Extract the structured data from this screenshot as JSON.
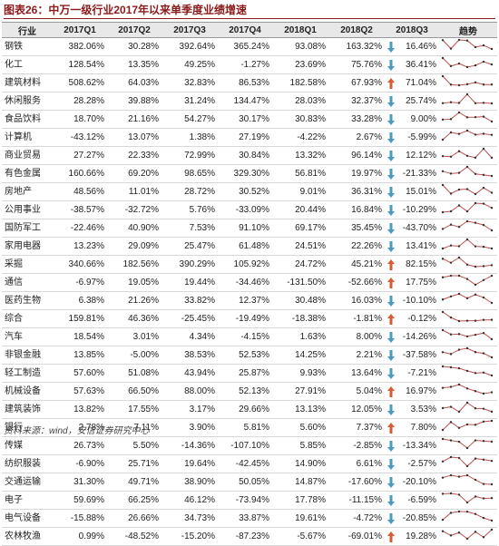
{
  "title": "图表26：中万一级行业2017年以来单季度业绩增速",
  "source": "资料来源：wind，安信证券研究中心",
  "arrow_colors": {
    "up": "#e0582f",
    "down": "#4a9bc2"
  },
  "sparkline_color": "#c0504d",
  "table": {
    "header": [
      "行业",
      "2017Q1",
      "2017Q2",
      "2017Q3",
      "2017Q4",
      "2018Q1",
      "2018Q2",
      "2018Q3",
      "趋势"
    ],
    "rows": [
      {
        "cells": [
          "钢铁",
          "382.06%",
          "30.28%",
          "392.64%",
          "365.24%",
          "93.08%",
          "163.32%",
          "16.46%"
        ],
        "arrow": "down"
      },
      {
        "cells": [
          "化工",
          "128.54%",
          "13.35%",
          "49.25%",
          "-1.27%",
          "23.69%",
          "75.76%",
          "36.41%"
        ],
        "arrow": "down"
      },
      {
        "cells": [
          "建筑材料",
          "508.62%",
          "64.03%",
          "32.83%",
          "86.53%",
          "182.58%",
          "67.93%",
          "71.04%"
        ],
        "arrow": "up"
      },
      {
        "cells": [
          "休闲服务",
          "28.28%",
          "39.88%",
          "31.24%",
          "134.47%",
          "28.03%",
          "32.37%",
          "25.74%"
        ],
        "arrow": "down"
      },
      {
        "cells": [
          "食品饮料",
          "18.70%",
          "21.16%",
          "54.27%",
          "30.17%",
          "30.83%",
          "33.28%",
          "9.00%"
        ],
        "arrow": "down"
      },
      {
        "cells": [
          "计算机",
          "-43.12%",
          "13.07%",
          "1.38%",
          "27.19%",
          "-4.22%",
          "2.67%",
          "-5.99%"
        ],
        "arrow": "down"
      },
      {
        "cells": [
          "商业贸易",
          "27.27%",
          "22.33%",
          "72.99%",
          "30.84%",
          "13.32%",
          "96.14%",
          "12.12%"
        ],
        "arrow": "down"
      },
      {
        "cells": [
          "有色金属",
          "160.66%",
          "69.20%",
          "98.65%",
          "329.30%",
          "56.81%",
          "19.97%",
          "-21.33%"
        ],
        "arrow": "down"
      },
      {
        "cells": [
          "房地产",
          "48.56%",
          "11.01%",
          "28.72%",
          "30.52%",
          "9.01%",
          "36.31%",
          "15.01%"
        ],
        "arrow": "down"
      },
      {
        "cells": [
          "公用事业",
          "-38.57%",
          "-32.72%",
          "5.76%",
          "-33.09%",
          "20.44%",
          "16.84%",
          "-10.29%"
        ],
        "arrow": "down"
      },
      {
        "cells": [
          "国防军工",
          "-22.46%",
          "40.90%",
          "7.53%",
          "91.10%",
          "69.17%",
          "35.45%",
          "-43.70%"
        ],
        "arrow": "down"
      },
      {
        "cells": [
          "家用电器",
          "13.23%",
          "29.09%",
          "25.47%",
          "61.48%",
          "24.51%",
          "22.26%",
          "13.41%"
        ],
        "arrow": "down"
      },
      {
        "cells": [
          "采掘",
          "340.66%",
          "182.56%",
          "390.29%",
          "105.92%",
          "24.72%",
          "45.21%",
          "82.15%"
        ],
        "arrow": "up"
      },
      {
        "cells": [
          "通信",
          "-6.97%",
          "19.05%",
          "19.44%",
          "-34.46%",
          "-131.50%",
          "-52.66%",
          "17.75%"
        ],
        "arrow": "up"
      },
      {
        "cells": [
          "医药生物",
          "6.38%",
          "21.26%",
          "33.82%",
          "12.37%",
          "30.48%",
          "16.03%",
          "-10.10%"
        ],
        "arrow": "down"
      },
      {
        "cells": [
          "综合",
          "159.81%",
          "46.36%",
          "-25.45%",
          "-19.49%",
          "-18.38%",
          "-1.81%",
          "-0.12%"
        ],
        "arrow": "up"
      },
      {
        "cells": [
          "汽车",
          "18.54%",
          "3.01%",
          "4.34%",
          "-4.15%",
          "1.63%",
          "8.00%",
          "-14.26%"
        ],
        "arrow": "down"
      },
      {
        "cells": [
          "非银金融",
          "13.85%",
          "-5.00%",
          "38.53%",
          "52.53%",
          "14.25%",
          "2.21%",
          "-37.58%"
        ],
        "arrow": "down"
      },
      {
        "cells": [
          "轻工制造",
          "57.60%",
          "51.08%",
          "43.94%",
          "25.87%",
          "9.93%",
          "13.64%",
          "-7.21%"
        ],
        "arrow": "down"
      },
      {
        "cells": [
          "机械设备",
          "57.63%",
          "66.50%",
          "88.00%",
          "52.13%",
          "27.91%",
          "5.04%",
          "16.97%"
        ],
        "arrow": "up"
      },
      {
        "cells": [
          "建筑装饰",
          "13.82%",
          "17.55%",
          "3.17%",
          "29.66%",
          "13.13%",
          "12.05%",
          "3.53%"
        ],
        "arrow": "down"
      },
      {
        "cells": [
          "银行",
          "2.78%",
          "7.11%",
          "3.90%",
          "5.81%",
          "5.60%",
          "7.37%",
          "7.80%"
        ],
        "arrow": "up"
      },
      {
        "cells": [
          "传媒",
          "26.73%",
          "5.50%",
          "-14.36%",
          "-107.10%",
          "5.85%",
          "-2.85%",
          "-13.34%"
        ],
        "arrow": "down"
      },
      {
        "cells": [
          "纺织服装",
          "-6.90%",
          "25.71%",
          "19.64%",
          "-42.45%",
          "14.90%",
          "6.61%",
          "-2.57%"
        ],
        "arrow": "down"
      },
      {
        "cells": [
          "交通运输",
          "31.30%",
          "49.71%",
          "38.90%",
          "50.05%",
          "14.87%",
          "-17.60%",
          "-20.10%"
        ],
        "arrow": "down"
      },
      {
        "cells": [
          "电子",
          "59.69%",
          "66.25%",
          "46.12%",
          "-73.94%",
          "17.78%",
          "-11.15%",
          "-6.59%"
        ],
        "arrow": "down"
      },
      {
        "cells": [
          "电气设备",
          "-15.88%",
          "26.66%",
          "34.73%",
          "33.87%",
          "19.61%",
          "-4.72%",
          "-20.85%"
        ],
        "arrow": "down"
      },
      {
        "cells": [
          "农林牧渔",
          "0.99%",
          "-48.52%",
          "-15.20%",
          "-87.23%",
          "-5.67%",
          "-69.01%",
          "19.28%"
        ],
        "arrow": "up"
      }
    ]
  }
}
